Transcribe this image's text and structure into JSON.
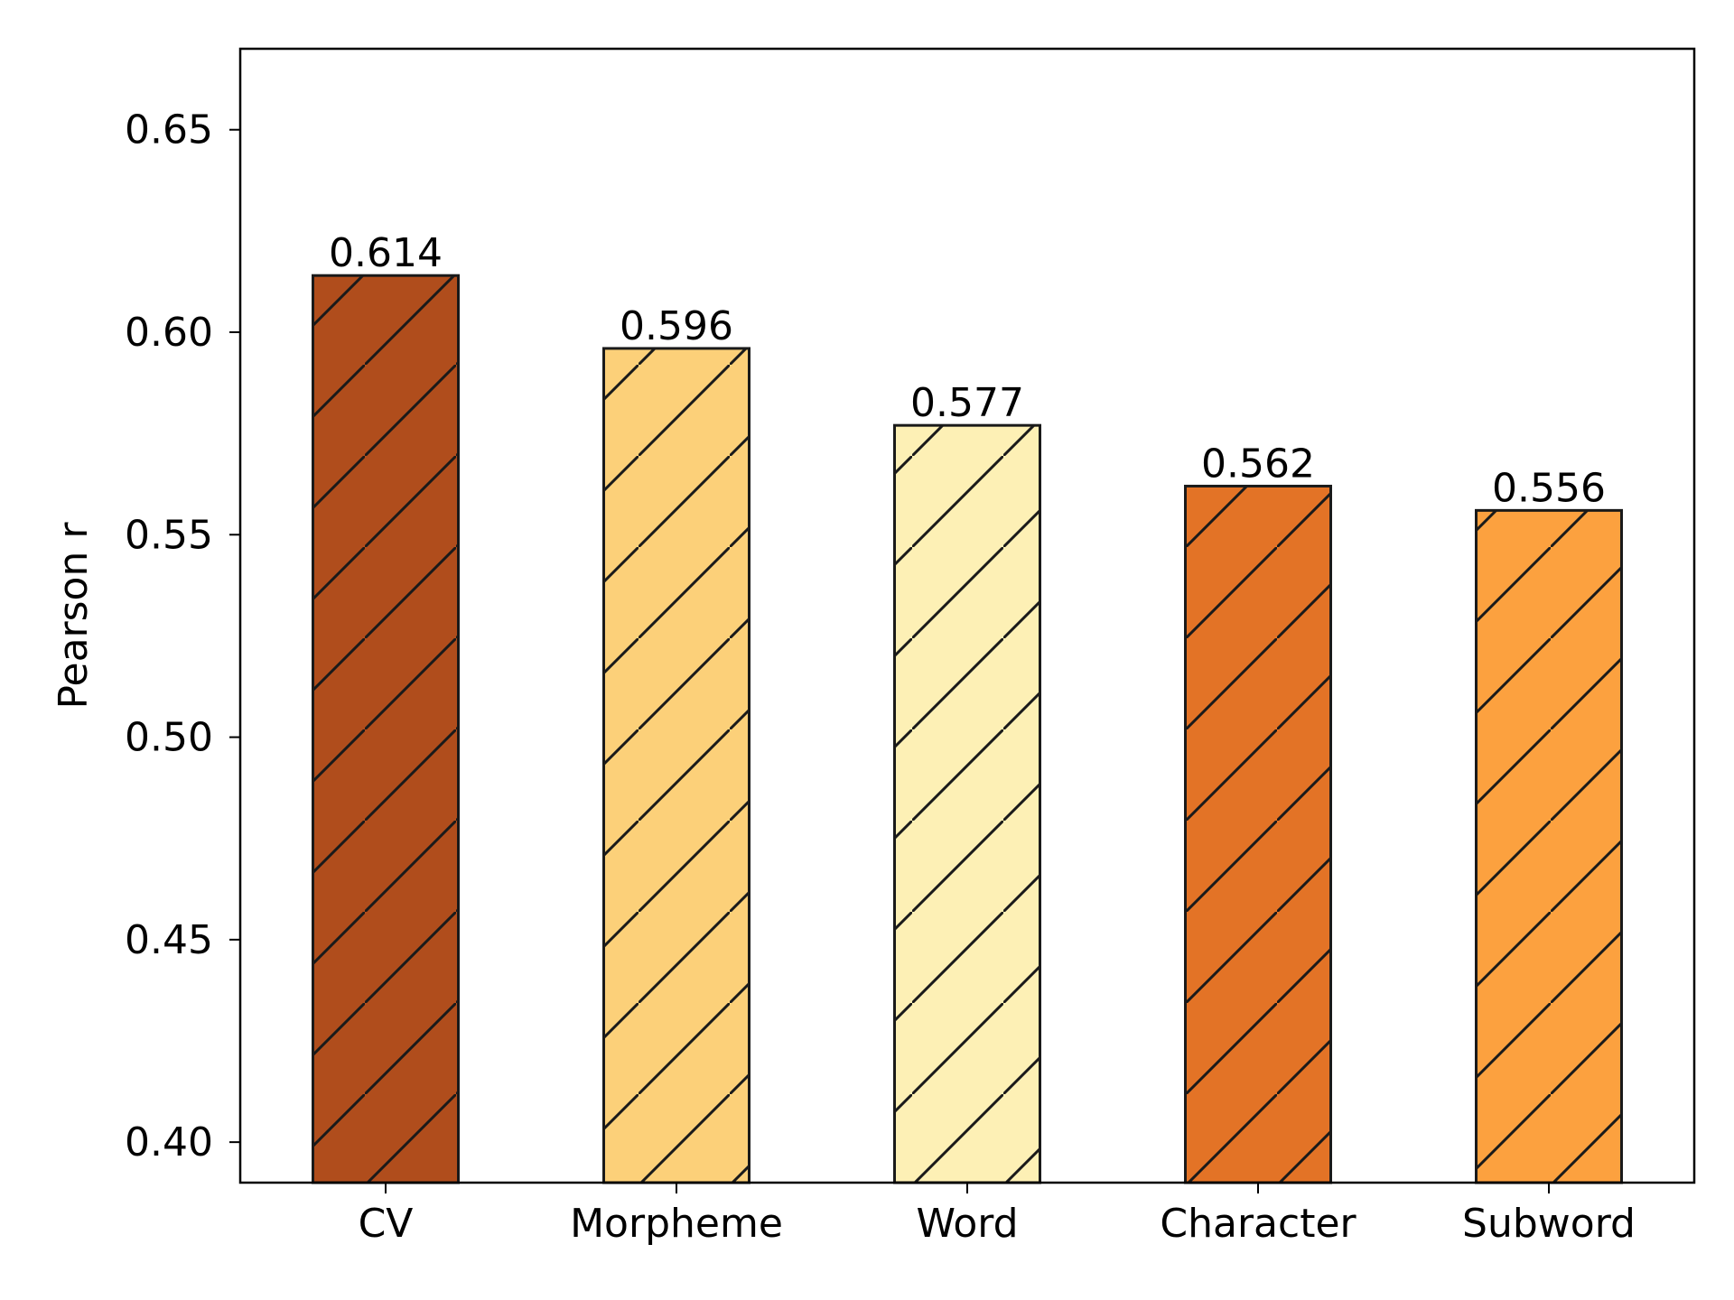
{
  "chart_data": {
    "type": "bar",
    "title": "",
    "xlabel": "",
    "ylabel": "Pearson r",
    "categories": [
      "CV",
      "Morpheme",
      "Word",
      "Character",
      "Subword"
    ],
    "values": [
      0.614,
      0.596,
      0.577,
      0.562,
      0.556
    ],
    "value_labels": [
      "0.614",
      "0.596",
      "0.577",
      "0.562",
      "0.556"
    ],
    "ylim": [
      0.39,
      0.67
    ],
    "yticks": [
      0.4,
      0.45,
      0.5,
      0.55,
      0.6,
      0.65
    ],
    "ytick_labels": [
      "0.40",
      "0.45",
      "0.50",
      "0.55",
      "0.60",
      "0.65"
    ],
    "bar_colors": [
      "#b04d1c",
      "#fcd079",
      "#fdf0b5",
      "#e37326",
      "#fca13f"
    ],
    "edge_color": "#1a1a1a",
    "hatch": "diagonal",
    "grid": false,
    "legend": "none"
  }
}
